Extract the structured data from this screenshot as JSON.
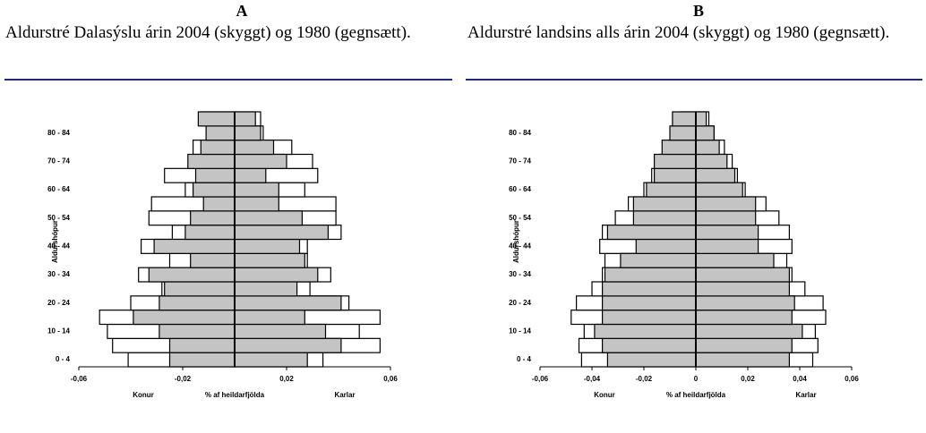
{
  "chart_data": [
    {
      "type": "pyramid",
      "title": "A",
      "subtitle": "Aldurstré Dalasýslu árin 2004 (skyggt) og 1980 (gegnsætt).",
      "ylabel": "Aldurshópur",
      "xlabel": "% af heildarfjölda",
      "left_label": "Konur",
      "right_label": "Karlar",
      "categories": [
        "0 - 4",
        null,
        "10 - 14",
        null,
        "20 - 24",
        null,
        "30 - 34",
        null,
        "40 - 44",
        null,
        "50 - 54",
        null,
        "60 - 64",
        null,
        "70 - 74",
        null,
        "80 - 84",
        null
      ],
      "xlim": [
        -0.06,
        0.06
      ],
      "xticks": [
        {
          "value": -0.06,
          "label": "-0,06"
        },
        {
          "value": -0.02,
          "label": "-0,02"
        },
        {
          "value": 0.02,
          "label": "0,02"
        },
        {
          "value": 0.06,
          "label": "0,06"
        }
      ],
      "series": [
        {
          "color": "#ffffff",
          "female": [
            -0.041,
            -0.047,
            -0.049,
            -0.052,
            -0.04,
            -0.028,
            -0.037,
            -0.025,
            -0.036,
            -0.024,
            -0.033,
            -0.032,
            -0.019,
            -0.027,
            -0.013,
            -0.016,
            -0.01,
            -0.013
          ],
          "male": [
            0.034,
            0.056,
            0.048,
            0.056,
            0.044,
            0.029,
            0.037,
            0.028,
            0.028,
            0.041,
            0.039,
            0.039,
            0.027,
            0.032,
            0.03,
            0.022,
            0.011,
            0.01
          ]
        },
        {
          "color": "#c4c4c4",
          "female": [
            -0.025,
            -0.025,
            -0.029,
            -0.039,
            -0.029,
            -0.027,
            -0.033,
            -0.017,
            -0.031,
            -0.019,
            -0.017,
            -0.012,
            -0.016,
            -0.015,
            -0.018,
            -0.013,
            -0.011,
            -0.014
          ],
          "male": [
            0.028,
            0.041,
            0.035,
            0.027,
            0.041,
            0.024,
            0.032,
            0.027,
            0.025,
            0.036,
            0.026,
            0.017,
            0.017,
            0.012,
            0.02,
            0.015,
            0.01,
            0.008
          ]
        }
      ]
    },
    {
      "type": "pyramid",
      "title": "B",
      "subtitle": "Aldurstré landsins alls árin 2004 (skyggt) og 1980 (gegnsætt).",
      "ylabel": "Aldurshópur",
      "xlabel": "% af heildarfjölda",
      "left_label": "Konur",
      "right_label": "Karlar",
      "categories": [
        "0 - 4",
        null,
        "10 - 14",
        null,
        "20 - 24",
        null,
        "30 - 34",
        null,
        "40 - 44",
        null,
        "50 - 54",
        null,
        "60 - 64",
        null,
        "70 - 74",
        null,
        "80 - 84",
        null
      ],
      "xlim": [
        -0.06,
        0.06
      ],
      "xticks": [
        {
          "value": -0.06,
          "label": "-0,06"
        },
        {
          "value": -0.04,
          "label": "-0,04"
        },
        {
          "value": -0.02,
          "label": "-0,02"
        },
        0,
        {
          "value": 0.02,
          "label": "0,02"
        },
        {
          "value": 0.04,
          "label": "0,04"
        },
        {
          "value": 0.06,
          "label": "0,06"
        }
      ],
      "series": [
        {
          "color": "#ffffff",
          "female": [
            -0.044,
            -0.045,
            -0.043,
            -0.048,
            -0.046,
            -0.04,
            -0.036,
            -0.035,
            -0.037,
            -0.036,
            -0.031,
            -0.026,
            -0.02,
            -0.017,
            -0.014,
            -0.011,
            -0.008,
            -0.006
          ],
          "male": [
            0.045,
            0.047,
            0.046,
            0.05,
            0.049,
            0.042,
            0.037,
            0.035,
            0.037,
            0.036,
            0.032,
            0.027,
            0.019,
            0.016,
            0.014,
            0.011,
            0.007,
            0.005
          ]
        },
        {
          "color": "#c4c4c4",
          "female": [
            -0.034,
            -0.036,
            -0.039,
            -0.036,
            -0.036,
            -0.036,
            -0.035,
            -0.029,
            -0.023,
            -0.034,
            -0.024,
            -0.024,
            -0.019,
            -0.016,
            -0.016,
            -0.013,
            -0.01,
            -0.009
          ],
          "male": [
            0.036,
            0.037,
            0.041,
            0.037,
            0.038,
            0.036,
            0.036,
            0.03,
            0.024,
            0.024,
            0.023,
            0.023,
            0.018,
            0.015,
            0.012,
            0.009,
            0.007,
            0.004
          ]
        }
      ]
    }
  ]
}
